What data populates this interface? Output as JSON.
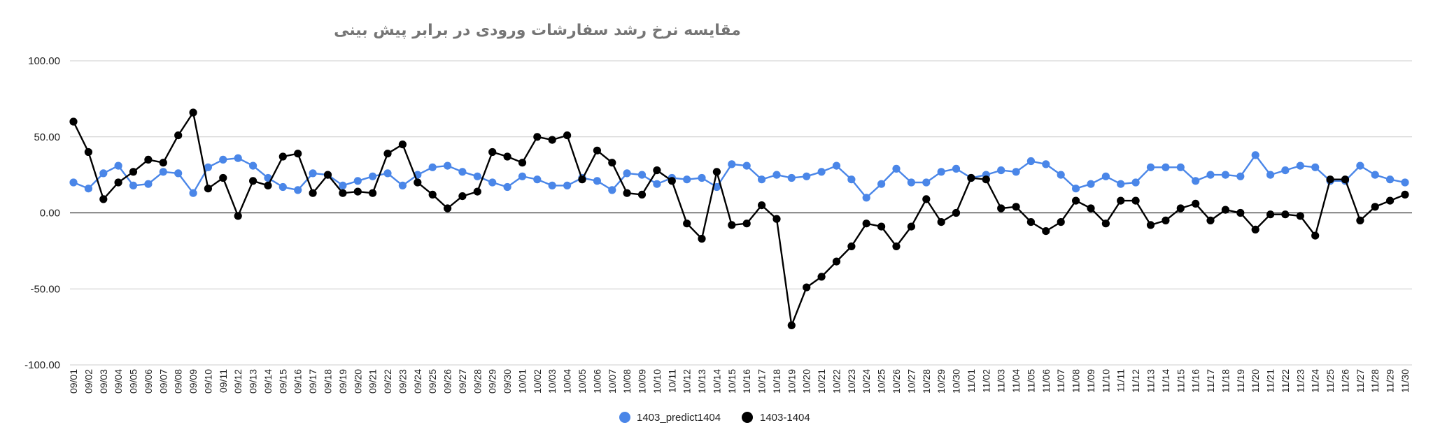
{
  "chart_data": {
    "type": "line",
    "title": "مقایسه نرخ رشد سفارشات ورودی در برابر پیش بینی",
    "xlabel": "",
    "ylabel": "",
    "ylim": [
      -100,
      100
    ],
    "y_ticks": [
      "100.00",
      "50.00",
      "0.00",
      "-50.00",
      "-100.00"
    ],
    "y_tick_values": [
      100,
      50,
      0,
      -50,
      -100
    ],
    "grid": true,
    "legend_position": "bottom",
    "categories": [
      "09/01",
      "09/02",
      "09/03",
      "09/04",
      "09/05",
      "09/06",
      "09/07",
      "09/08",
      "09/09",
      "09/10",
      "09/11",
      "09/12",
      "09/13",
      "09/14",
      "09/15",
      "09/16",
      "09/17",
      "09/18",
      "09/19",
      "09/20",
      "09/21",
      "09/22",
      "09/23",
      "09/24",
      "09/25",
      "09/26",
      "09/27",
      "09/28",
      "09/29",
      "09/30",
      "10/01",
      "10/02",
      "10/03",
      "10/04",
      "10/05",
      "10/06",
      "10/07",
      "10/08",
      "10/09",
      "10/10",
      "10/11",
      "10/12",
      "10/13",
      "10/14",
      "10/15",
      "10/16",
      "10/17",
      "10/18",
      "10/19",
      "10/20",
      "10/21",
      "10/22",
      "10/23",
      "10/24",
      "10/25",
      "10/26",
      "10/27",
      "10/28",
      "10/29",
      "10/30",
      "11/01",
      "11/02",
      "11/03",
      "11/04",
      "11/05",
      "11/06",
      "11/07",
      "11/08",
      "11/09",
      "11/10",
      "11/11",
      "11/12",
      "11/13",
      "11/14",
      "11/15",
      "11/16",
      "11/17",
      "11/18",
      "11/19",
      "11/20",
      "11/21",
      "11/22",
      "11/23",
      "11/24",
      "11/25",
      "11/26",
      "11/27",
      "11/28",
      "11/29",
      "11/30"
    ],
    "series": [
      {
        "name": "1403_predict1404",
        "color": "#4a86e8",
        "values": [
          20,
          16,
          26,
          31,
          18,
          19,
          27,
          26,
          13,
          30,
          35,
          36,
          31,
          23,
          17,
          15,
          26,
          25,
          18,
          21,
          24,
          26,
          18,
          25,
          30,
          31,
          27,
          24,
          20,
          17,
          24,
          22,
          18,
          18,
          23,
          21,
          15,
          26,
          25,
          19,
          23,
          22,
          23,
          17,
          32,
          31,
          22,
          25,
          23,
          24,
          27,
          31,
          22,
          10,
          19,
          29,
          20,
          20,
          27,
          29,
          23,
          25,
          28,
          27,
          34,
          32,
          25,
          16,
          19,
          24,
          19,
          20,
          30,
          30,
          30,
          21,
          25,
          25,
          24,
          38,
          25,
          28,
          31,
          30,
          21,
          21,
          31,
          25,
          22,
          20
        ]
      },
      {
        "name": "1403-1404",
        "color": "#000000",
        "values": [
          60,
          40,
          9,
          20,
          27,
          35,
          33,
          51,
          66,
          16,
          23,
          -2,
          21,
          18,
          37,
          39,
          13,
          25,
          13,
          14,
          13,
          39,
          45,
          20,
          12,
          3,
          11,
          14,
          40,
          37,
          33,
          50,
          48,
          51,
          22,
          41,
          33,
          13,
          12,
          28,
          21,
          -7,
          -17,
          27,
          -8,
          -7,
          5,
          -4,
          -74,
          -49,
          -42,
          -32,
          -22,
          -7,
          -9,
          -22,
          -9,
          9,
          -6,
          0,
          23,
          22,
          3,
          4,
          -6,
          -12,
          -6,
          8,
          3,
          -7,
          8,
          8,
          -8,
          -5,
          3,
          6,
          -5,
          2,
          0,
          -11,
          -1,
          -1,
          -2,
          -15,
          22,
          22,
          -5,
          4,
          8,
          12
        ]
      }
    ]
  }
}
